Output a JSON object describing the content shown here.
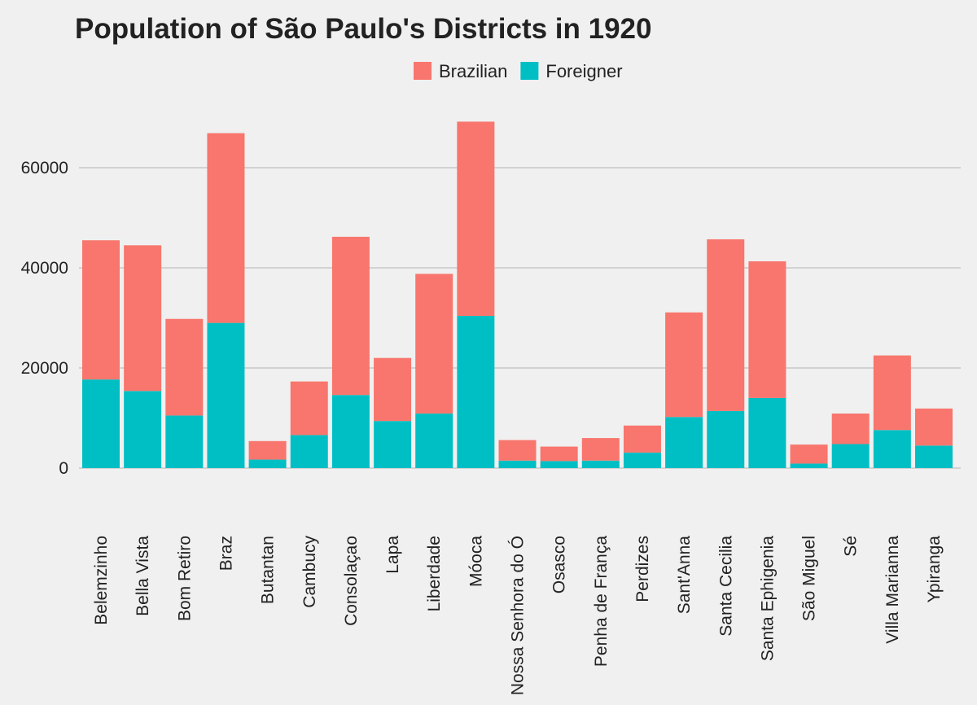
{
  "chart_data": {
    "type": "bar",
    "stacked": true,
    "title": "Population of São Paulo's Districts in 1920",
    "xlabel": "",
    "ylabel": "",
    "ylim": [
      0,
      72000
    ],
    "yticks": [
      0,
      20000,
      40000,
      60000
    ],
    "ytick_labels": [
      "0",
      "20000",
      "40000",
      "60000"
    ],
    "grid": "horizontal",
    "legend_position": "top",
    "categories": [
      "Belemzinho",
      "Bella Vista",
      "Bom Retiro",
      "Braz",
      "Butantan",
      "Cambucy",
      "Consolaçao",
      "Lapa",
      "Liberdade",
      "Móoca",
      "Nossa Senhora do Ó",
      "Osasco",
      "Penha de França",
      "Perdizes",
      "Sant'Anna",
      "Santa Cecilia",
      "Santa Ephigenia",
      "São Miguel",
      "Sé",
      "Villa Marianna",
      "Ypiranga"
    ],
    "series": [
      {
        "name": "Foreigner",
        "color": "#00bfc4",
        "values": [
          17700,
          15400,
          10500,
          29000,
          1700,
          6600,
          14600,
          9400,
          10900,
          30400,
          1500,
          1400,
          1500,
          3100,
          10200,
          11400,
          14000,
          900,
          4800,
          7600,
          4500
        ]
      },
      {
        "name": "Brazilian",
        "color": "#f8766d",
        "values": [
          27800,
          29100,
          19300,
          37900,
          3700,
          10700,
          31600,
          12600,
          27900,
          38800,
          4100,
          2900,
          4500,
          5400,
          20900,
          34300,
          27300,
          3800,
          6100,
          14900,
          7400
        ]
      }
    ],
    "legend_order": [
      "Brazilian",
      "Foreigner"
    ]
  }
}
